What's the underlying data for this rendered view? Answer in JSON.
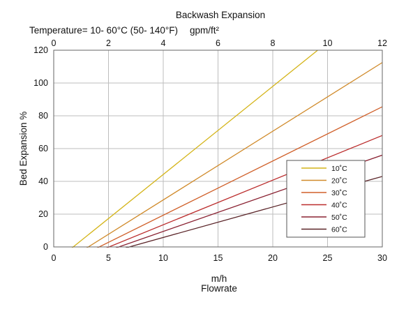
{
  "chart_data": {
    "type": "line",
    "title": "Backwash Expansion",
    "subtitle": "Temperature= 10- 60°C (50- 140°F)",
    "top_axis_label": "gpm/ft²",
    "xlabel_unit": "m/h",
    "xlabel": "Flowrate",
    "ylabel": "Bed Expansion %",
    "xlim": [
      0,
      30
    ],
    "ylim": [
      0,
      120
    ],
    "x_ticks": [
      "0",
      "5",
      "10",
      "15",
      "20",
      "25",
      "30"
    ],
    "x_tick_values": [
      0,
      5,
      10,
      15,
      20,
      25,
      30
    ],
    "top_ticks": [
      "0",
      "2",
      "4",
      "6",
      "8",
      "10",
      "12"
    ],
    "top_tick_values": [
      0,
      2,
      4,
      6,
      8,
      10,
      12
    ],
    "y_ticks": [
      "0",
      "20",
      "40",
      "60",
      "80",
      "100",
      "120"
    ],
    "y_tick_values": [
      0,
      20,
      40,
      60,
      80,
      100,
      120
    ],
    "grid": true,
    "legend_position": "right",
    "series": [
      {
        "name": "10˚C",
        "color": "#d4b418",
        "x": [
          1.5,
          24.1
        ],
        "y": [
          -1.5,
          120
        ]
      },
      {
        "name": "20˚C",
        "color": "#d08a2a",
        "x": [
          2.8,
          30
        ],
        "y": [
          -1.5,
          112.5
        ]
      },
      {
        "name": "30˚C",
        "color": "#d0602a",
        "x": [
          3.7,
          30
        ],
        "y": [
          -1.5,
          85.5
        ]
      },
      {
        "name": "40˚C",
        "color": "#bb2d2d",
        "x": [
          4.5,
          30
        ],
        "y": [
          -1.5,
          68
        ]
      },
      {
        "name": "50˚C",
        "color": "#8a2232",
        "x": [
          5.3,
          30
        ],
        "y": [
          -1.5,
          56
        ]
      },
      {
        "name": "60˚C",
        "color": "#5a2428",
        "x": [
          6.1,
          30
        ],
        "y": [
          -1.5,
          43
        ]
      }
    ]
  }
}
